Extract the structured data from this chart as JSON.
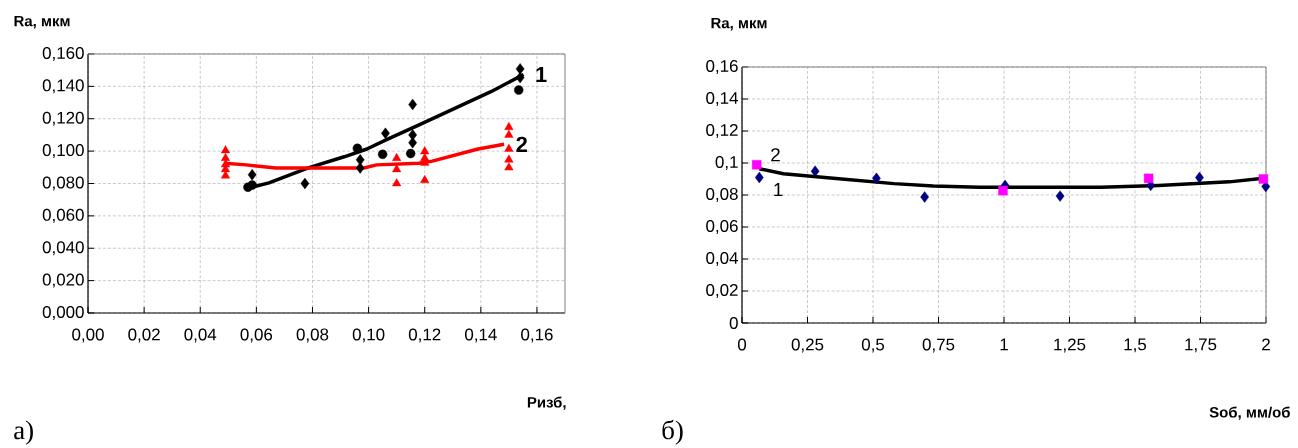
{
  "chart_data": [
    {
      "type": "scatter",
      "ylabel": "Ra, мкм",
      "xlabel": "Ризб,",
      "grid": true,
      "xlim": [
        0,
        0.17
      ],
      "ylim": [
        0,
        0.16
      ],
      "xticks": [
        {
          "value": 0,
          "label": "0,00"
        },
        {
          "value": 0.02,
          "label": "0,02"
        },
        {
          "value": 0.04,
          "label": "0,04"
        },
        {
          "value": 0.06,
          "label": "0,06"
        },
        {
          "value": 0.08,
          "label": "0,08"
        },
        {
          "value": 0.1,
          "label": "0,10"
        },
        {
          "value": 0.12,
          "label": "0,12"
        },
        {
          "value": 0.14,
          "label": "0,14"
        },
        {
          "value": 0.16,
          "label": "0,16"
        }
      ],
      "yticks": [
        {
          "value": 0,
          "label": "0,000"
        },
        {
          "value": 0.02,
          "label": "0,020"
        },
        {
          "value": 0.04,
          "label": "0,040"
        },
        {
          "value": 0.06,
          "label": "0,060"
        },
        {
          "value": 0.08,
          "label": "0,080"
        },
        {
          "value": 0.1,
          "label": "0,100"
        },
        {
          "value": 0.12,
          "label": "0,120"
        },
        {
          "value": 0.14,
          "label": "0,140"
        },
        {
          "value": 0.16,
          "label": "0,160"
        }
      ],
      "series": [
        {
          "marker": "diamond",
          "color": "#000000",
          "x": [
            0.0585,
            0.0773,
            0.097,
            0.097,
            0.106,
            0.1157,
            0.1157,
            0.1157,
            0.154,
            0.154
          ],
          "values": [
            0.0854,
            0.08,
            0.0946,
            0.0896,
            0.111,
            0.1288,
            0.11,
            0.1052,
            0.1508,
            0.1454
          ]
        },
        {
          "marker": "circle",
          "color": "#000000",
          "x": [
            0.057,
            0.0585,
            0.096,
            0.105,
            0.115,
            0.1535
          ],
          "values": [
            0.0777,
            0.079,
            0.1017,
            0.098,
            0.0985,
            0.1377
          ]
        },
        {
          "marker": "triangle",
          "color": "#ff0000",
          "x": [
            0.049,
            0.049,
            0.049,
            0.049,
            0.049,
            0.11,
            0.11,
            0.11,
            0.12,
            0.12,
            0.12,
            0.12,
            0.15,
            0.15,
            0.15,
            0.15,
            0.15
          ],
          "values": [
            0.1004,
            0.0956,
            0.0917,
            0.0887,
            0.0848,
            0.0956,
            0.0887,
            0.08,
            0.0998,
            0.0956,
            0.0927,
            0.082,
            0.1148,
            0.11,
            0.1013,
            0.0946,
            0.0898
          ]
        },
        {
          "type": "line",
          "name": "1",
          "color": "#000000",
          "x": [
            0.057,
            0.0645,
            0.0785,
            0.0913,
            0.0994,
            0.1064,
            0.118,
            0.1436,
            0.1552
          ],
          "values": [
            0.0771,
            0.0804,
            0.0896,
            0.0965,
            0.1013,
            0.1071,
            0.1162,
            0.1367,
            0.1473
          ]
        },
        {
          "type": "line",
          "name": "2",
          "color": "#ff0000",
          "x": [
            0.0488,
            0.0564,
            0.0669,
            0.0983,
            0.1029,
            0.118,
            0.1227,
            0.139,
            0.1483
          ],
          "values": [
            0.0925,
            0.0915,
            0.0896,
            0.0896,
            0.0915,
            0.0925,
            0.0938,
            0.1013,
            0.1042
          ]
        }
      ],
      "annotations": [
        "а)"
      ]
    },
    {
      "type": "scatter",
      "ylabel": "Ra, мкм",
      "xlabel": "Sоб, мм/об",
      "grid": true,
      "xlim": [
        0,
        2
      ],
      "ylim": [
        0,
        0.16
      ],
      "xticks": [
        0,
        {
          "value": 0.25,
          "label": "0,25"
        },
        {
          "value": 0.5,
          "label": "0,5"
        },
        {
          "value": 0.75,
          "label": "0,75"
        },
        1,
        {
          "value": 1.25,
          "label": "1,25"
        },
        {
          "value": 1.5,
          "label": "1,5"
        },
        {
          "value": 1.75,
          "label": "1,75"
        },
        2
      ],
      "yticks": [
        0,
        {
          "value": 0.02,
          "label": "0,02"
        },
        {
          "value": 0.04,
          "label": "0,04"
        },
        {
          "value": 0.06,
          "label": "0,06"
        },
        {
          "value": 0.08,
          "label": "0,08"
        },
        {
          "value": 0.1,
          "label": "0,1"
        },
        {
          "value": 0.12,
          "label": "0,12"
        },
        {
          "value": 0.14,
          "label": "0,14"
        },
        {
          "value": 0.16,
          "label": "0,16"
        }
      ],
      "series": [
        {
          "name": "1",
          "marker": "diamond",
          "color": "#000080",
          "x": [
            0.066,
            0.279,
            0.513,
            0.697,
            1.004,
            1.214,
            1.56,
            1.746,
            1.999
          ],
          "values": [
            0.0909,
            0.0949,
            0.0904,
            0.0787,
            0.086,
            0.0793,
            0.086,
            0.0909,
            0.0853
          ]
        },
        {
          "name": "2",
          "marker": "square",
          "color": "#ff00ff",
          "x": [
            0.056,
            0.996,
            1.552,
            1.99
          ],
          "values": [
            0.0989,
            0.0827,
            0.0904,
            0.09
          ]
        },
        {
          "type": "line",
          "color": "#000000",
          "x": [
            0.066,
            0.158,
            0.348,
            0.58,
            0.73,
            0.906,
            1.37,
            1.59,
            1.86,
            1.99
          ],
          "values": [
            0.0964,
            0.0933,
            0.0904,
            0.0871,
            0.0856,
            0.0849,
            0.0849,
            0.086,
            0.0882,
            0.0904
          ]
        }
      ],
      "annotations": [
        "б)"
      ]
    }
  ]
}
